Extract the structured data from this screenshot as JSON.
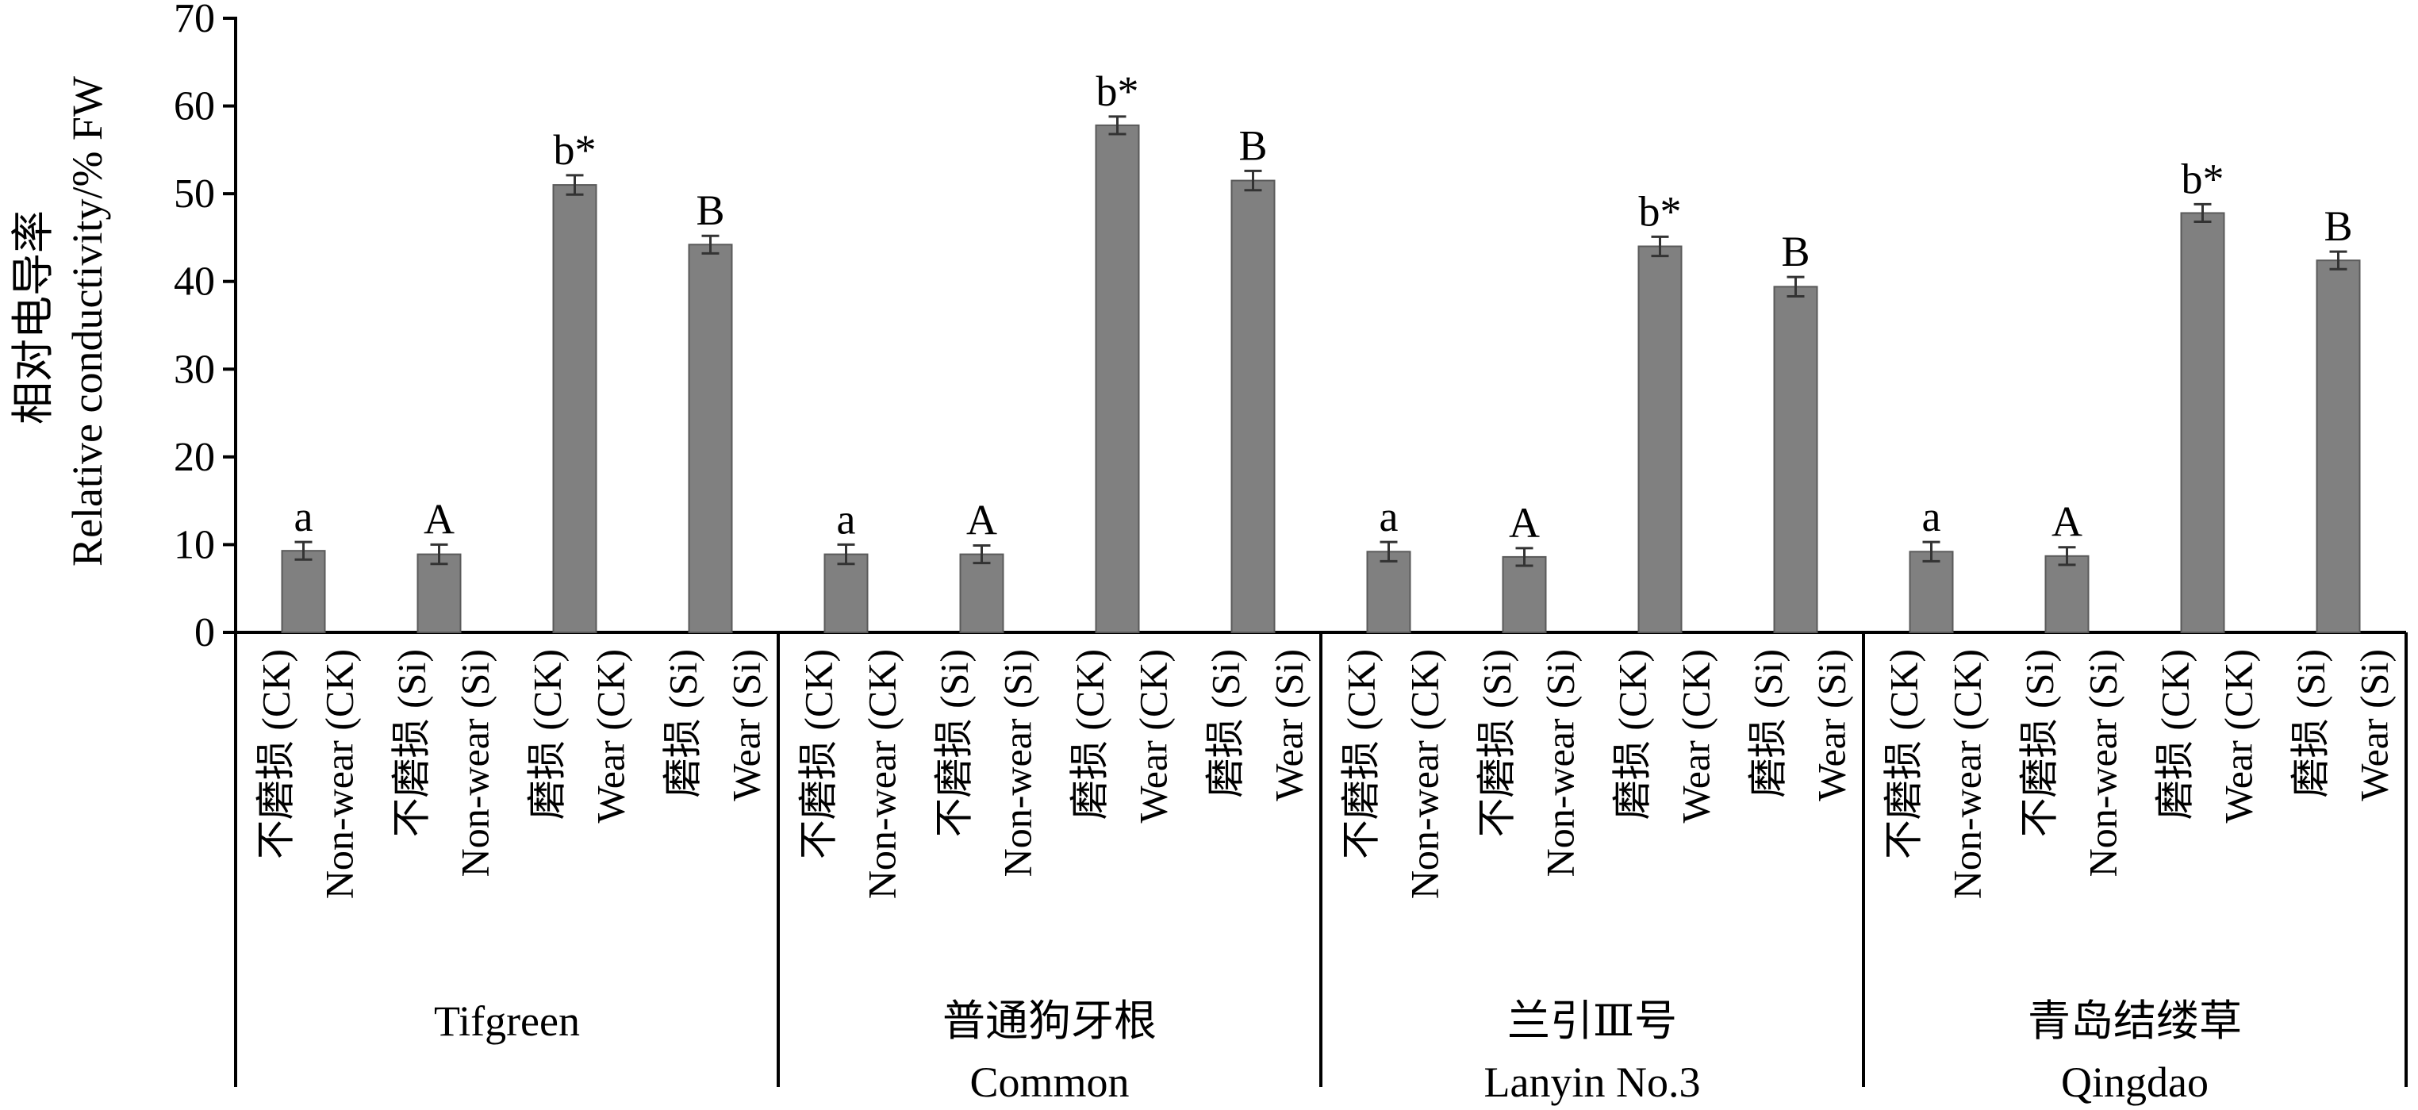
{
  "chart_data": {
    "type": "bar",
    "ylabel_zh": "相对电导率",
    "ylabel": "Relative conductivity/% FW",
    "ylim": [
      0,
      70
    ],
    "yticks": [
      0,
      10,
      20,
      30,
      40,
      50,
      60,
      70
    ],
    "grid": false,
    "bar_color": "#808080",
    "groups": [
      {
        "name_zh": "",
        "name_en": "Tifgreen",
        "bars": [
          {
            "label_zh": "不磨损 (CK)",
            "label_en": "Non-wear (CK)",
            "value": 9.3,
            "error": 1.0,
            "letter": "a"
          },
          {
            "label_zh": "不磨损 (Si)",
            "label_en": "Non-wear (Si)",
            "value": 8.9,
            "error": 1.1,
            "letter": "A"
          },
          {
            "label_zh": "磨损 (CK)",
            "label_en": "Wear (CK)",
            "value": 51.0,
            "error": 1.1,
            "letter": "b*"
          },
          {
            "label_zh": "磨损 (Si)",
            "label_en": "Wear (Si)",
            "value": 44.2,
            "error": 1.0,
            "letter": "B"
          }
        ]
      },
      {
        "name_zh": "普通狗牙根",
        "name_en": "Common",
        "bars": [
          {
            "label_zh": "不磨损 (CK)",
            "label_en": "Non-wear (CK)",
            "value": 8.9,
            "error": 1.1,
            "letter": "a"
          },
          {
            "label_zh": "不磨损 (Si)",
            "label_en": "Non-wear (Si)",
            "value": 8.9,
            "error": 1.0,
            "letter": "A"
          },
          {
            "label_zh": "磨损 (CK)",
            "label_en": "Wear (CK)",
            "value": 57.8,
            "error": 1.0,
            "letter": "b*"
          },
          {
            "label_zh": "磨损 (Si)",
            "label_en": "Wear (Si)",
            "value": 51.5,
            "error": 1.1,
            "letter": "B"
          }
        ]
      },
      {
        "name_zh": "兰引Ⅲ号",
        "name_en": "Lanyin No.3",
        "bars": [
          {
            "label_zh": "不磨损 (CK)",
            "label_en": "Non-wear (CK)",
            "value": 9.2,
            "error": 1.1,
            "letter": "a"
          },
          {
            "label_zh": "不磨损 (Si)",
            "label_en": "Non-wear (Si)",
            "value": 8.6,
            "error": 1.0,
            "letter": "A"
          },
          {
            "label_zh": "磨损 (CK)",
            "label_en": "Wear (CK)",
            "value": 44.0,
            "error": 1.1,
            "letter": "b*"
          },
          {
            "label_zh": "磨损 (Si)",
            "label_en": "Wear (Si)",
            "value": 39.4,
            "error": 1.1,
            "letter": "B"
          }
        ]
      },
      {
        "name_zh": "青岛结缕草",
        "name_en": "Qingdao",
        "bars": [
          {
            "label_zh": "不磨损 (CK)",
            "label_en": "Non-wear (CK)",
            "value": 9.2,
            "error": 1.1,
            "letter": "a"
          },
          {
            "label_zh": "不磨损 (Si)",
            "label_en": "Non-wear (Si)",
            "value": 8.7,
            "error": 1.0,
            "letter": "A"
          },
          {
            "label_zh": "磨损 (CK)",
            "label_en": "Wear (CK)",
            "value": 47.8,
            "error": 1.0,
            "letter": "b*"
          },
          {
            "label_zh": "磨损 (Si)",
            "label_en": "Wear (Si)",
            "value": 42.4,
            "error": 1.0,
            "letter": "B"
          }
        ]
      }
    ]
  }
}
